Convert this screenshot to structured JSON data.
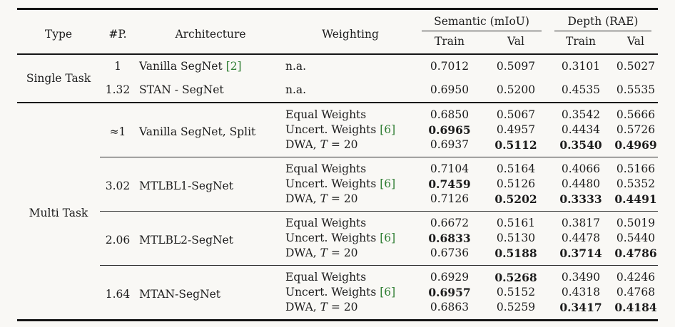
{
  "colors": {
    "citation_green": "#2e7d32",
    "rule_dark": "#151515",
    "text": "#1c1c1c",
    "background": "#f9f8f5"
  },
  "header": {
    "type": "Type",
    "params": "#P.",
    "architecture": "Architecture",
    "weighting": "Weighting",
    "groups": [
      {
        "label": "Semantic (mIoU)",
        "sub": [
          "Train",
          "Val"
        ]
      },
      {
        "label": "Depth (RAE)",
        "sub": [
          "Train",
          "Val"
        ]
      }
    ]
  },
  "table": {
    "sections": [
      {
        "type_label": "Single Task",
        "block_rules": false,
        "blocks": [
          {
            "params": "1",
            "arch": "Vanilla SegNet ",
            "arch_cite": "[2]",
            "rows": [
              {
                "w_pre": "n.a.",
                "w_math": "",
                "w_post": "",
                "w_cite": "",
                "values": [
                  "0.7012",
                  "0.5097",
                  "0.3101",
                  "0.5027"
                ],
                "bold": [
                  false,
                  false,
                  false,
                  false
                ]
              }
            ]
          },
          {
            "params": "1.32",
            "arch": "STAN - SegNet",
            "arch_cite": "",
            "rows": [
              {
                "w_pre": "n.a.",
                "w_math": "",
                "w_post": "",
                "w_cite": "",
                "values": [
                  "0.6950",
                  "0.5200",
                  "0.4535",
                  "0.5535"
                ],
                "bold": [
                  false,
                  false,
                  false,
                  false
                ]
              }
            ]
          }
        ]
      },
      {
        "type_label": "Multi Task",
        "block_rules": true,
        "blocks": [
          {
            "params": "≈1",
            "arch": "Vanilla SegNet, Split",
            "arch_cite": "",
            "rows": [
              {
                "w_pre": "Equal Weights",
                "w_math": "",
                "w_post": "",
                "w_cite": "",
                "values": [
                  "0.6850",
                  "0.5067",
                  "0.3542",
                  "0.5666"
                ],
                "bold": [
                  false,
                  false,
                  false,
                  false
                ]
              },
              {
                "w_pre": "Uncert. Weights ",
                "w_math": "",
                "w_post": "",
                "w_cite": "[6]",
                "values": [
                  "0.6965",
                  "0.4957",
                  "0.4434",
                  "0.5726"
                ],
                "bold": [
                  true,
                  false,
                  false,
                  false
                ]
              },
              {
                "w_pre": "DWA, ",
                "w_math": "T",
                "w_post": " = 20",
                "w_cite": "",
                "values": [
                  "0.6937",
                  "0.5112",
                  "0.3540",
                  "0.4969"
                ],
                "bold": [
                  false,
                  true,
                  true,
                  true
                ]
              }
            ]
          },
          {
            "params": "3.02",
            "arch": "MTLBL1-SegNet",
            "arch_cite": "",
            "rows": [
              {
                "w_pre": "Equal Weights",
                "w_math": "",
                "w_post": "",
                "w_cite": "",
                "values": [
                  "0.7104",
                  "0.5164",
                  "0.4066",
                  "0.5166"
                ],
                "bold": [
                  false,
                  false,
                  false,
                  false
                ]
              },
              {
                "w_pre": "Uncert. Weights ",
                "w_math": "",
                "w_post": "",
                "w_cite": "[6]",
                "values": [
                  "0.7459",
                  "0.5126",
                  "0.4480",
                  "0.5352"
                ],
                "bold": [
                  true,
                  false,
                  false,
                  false
                ]
              },
              {
                "w_pre": "DWA, ",
                "w_math": "T",
                "w_post": " = 20",
                "w_cite": "",
                "values": [
                  "0.7126",
                  "0.5202",
                  "0.3333",
                  "0.4491"
                ],
                "bold": [
                  false,
                  true,
                  true,
                  true
                ]
              }
            ]
          },
          {
            "params": "2.06",
            "arch": "MTLBL2-SegNet",
            "arch_cite": "",
            "rows": [
              {
                "w_pre": "Equal Weights",
                "w_math": "",
                "w_post": "",
                "w_cite": "",
                "values": [
                  "0.6672",
                  "0.5161",
                  "0.3817",
                  "0.5019"
                ],
                "bold": [
                  false,
                  false,
                  false,
                  false
                ]
              },
              {
                "w_pre": "Uncert. Weights ",
                "w_math": "",
                "w_post": "",
                "w_cite": "[6]",
                "values": [
                  "0.6833",
                  "0.5130",
                  "0.4478",
                  "0.5440"
                ],
                "bold": [
                  true,
                  false,
                  false,
                  false
                ]
              },
              {
                "w_pre": "DWA, ",
                "w_math": "T",
                "w_post": " = 20",
                "w_cite": "",
                "values": [
                  "0.6736",
                  "0.5188",
                  "0.3714",
                  "0.4786"
                ],
                "bold": [
                  false,
                  true,
                  true,
                  true
                ]
              }
            ]
          },
          {
            "params": "1.64",
            "arch": "MTAN-SegNet",
            "arch_cite": "",
            "rows": [
              {
                "w_pre": "Equal Weights",
                "w_math": "",
                "w_post": "",
                "w_cite": "",
                "values": [
                  "0.6929",
                  "0.5268",
                  "0.3490",
                  "0.4246"
                ],
                "bold": [
                  false,
                  true,
                  false,
                  false
                ]
              },
              {
                "w_pre": "Uncert. Weights ",
                "w_math": "",
                "w_post": "",
                "w_cite": "[6]",
                "values": [
                  "0.6957",
                  "0.5152",
                  "0.4318",
                  "0.4768"
                ],
                "bold": [
                  true,
                  false,
                  false,
                  false
                ]
              },
              {
                "w_pre": "DWA, ",
                "w_math": "T",
                "w_post": " = 20",
                "w_cite": "",
                "values": [
                  "0.6863",
                  "0.5259",
                  "0.3417",
                  "0.4184"
                ],
                "bold": [
                  false,
                  false,
                  true,
                  true
                ]
              }
            ]
          }
        ]
      }
    ]
  }
}
